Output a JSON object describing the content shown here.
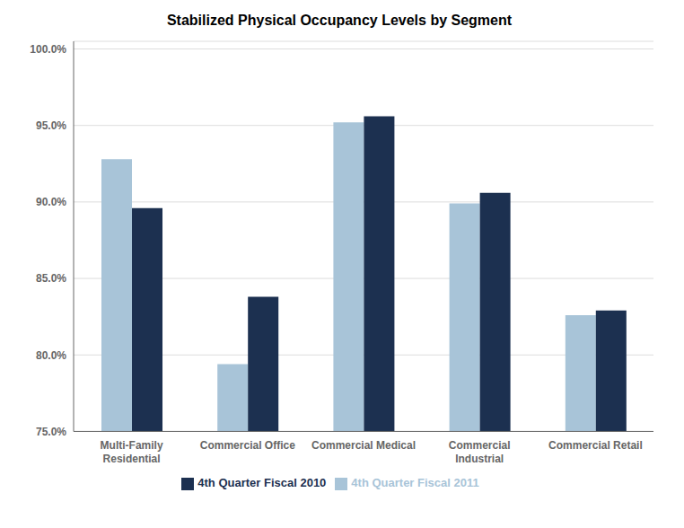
{
  "chart_data": {
    "type": "bar",
    "title": "Stabilized Physical Occupancy Levels by Segment",
    "categories": [
      "Multi-Family\nResidential",
      "Commercial Office",
      "Commercial Medical",
      "Commercial\nIndustrial",
      "Commercial Retail"
    ],
    "series": [
      {
        "name": "4th Quarter Fiscal 2011",
        "color": "#a8c4d8",
        "values": [
          0.928,
          0.794,
          0.952,
          0.899,
          0.826
        ]
      },
      {
        "name": "4th Quarter Fiscal 2010",
        "color": "#1c3050",
        "values": [
          0.896,
          0.838,
          0.956,
          0.906,
          0.829
        ]
      }
    ],
    "ylim": [
      0.75,
      1.005
    ],
    "yticks": [
      {
        "value": 0.75,
        "label": "75.0%"
      },
      {
        "value": 0.8,
        "label": "80.0%"
      },
      {
        "value": 0.85,
        "label": "85.0%"
      },
      {
        "value": 0.9,
        "label": "90.0%"
      },
      {
        "value": 0.95,
        "label": "95.0%"
      },
      {
        "value": 1.0,
        "label": "100.0%"
      }
    ],
    "grid": true,
    "legend": "bottom"
  }
}
